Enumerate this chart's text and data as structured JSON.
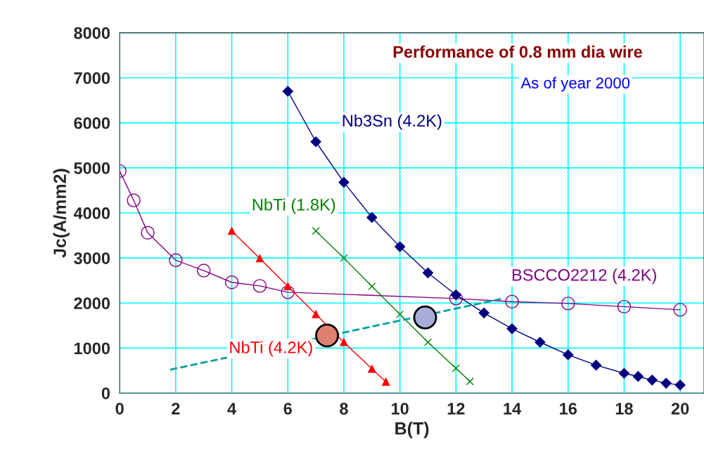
{
  "chart_data": {
    "type": "line",
    "title": "Performance of 0.8 mm dia wire",
    "subtitle": "As of year 2000",
    "xlabel": "B(T)",
    "ylabel": "Jc(A/mm2)",
    "xlim": [
      0,
      20.85
    ],
    "xticks": [
      0,
      2,
      4,
      6,
      8,
      10,
      12,
      14,
      16,
      18,
      20
    ],
    "ylim": [
      0,
      8000
    ],
    "yticks": [
      0,
      1000,
      2000,
      3000,
      4000,
      5000,
      6000,
      7000,
      8000
    ],
    "grid": true,
    "legend": false,
    "series": [
      {
        "name": "BSCCO2212 (4.2K)",
        "color": "#800080",
        "marker": "circle",
        "x": [
          0,
          0.5,
          1,
          2,
          3,
          4,
          5,
          6,
          12,
          14,
          16,
          18,
          20
        ],
        "values": [
          4930,
          4280,
          3560,
          2950,
          2720,
          2460,
          2380,
          2240,
          2100,
          2030,
          1990,
          1920,
          1850
        ]
      },
      {
        "name": "NbTi (4.2K)",
        "color": "#ff0000",
        "marker": "triangle",
        "x": [
          4,
          5,
          6,
          7,
          8,
          9,
          9.5
        ],
        "values": [
          3600,
          2990,
          2370,
          1750,
          1130,
          540,
          250
        ]
      },
      {
        "name": "NbTi (1.8K)",
        "color": "#008000",
        "marker": "cross",
        "x": [
          7,
          8,
          9,
          10,
          11,
          12,
          12.5
        ],
        "values": [
          3600,
          3000,
          2370,
          1750,
          1130,
          550,
          260
        ]
      },
      {
        "name": "Nb3Sn (4.2K)",
        "color": "#000080",
        "marker": "diamond",
        "x": [
          6,
          7,
          8,
          9,
          10,
          11,
          12,
          13,
          14,
          15,
          16,
          17,
          18,
          18.5,
          19,
          19.5,
          20
        ],
        "values": [
          6700,
          5580,
          4680,
          3900,
          3250,
          2670,
          2180,
          1780,
          1430,
          1130,
          850,
          620,
          440,
          370,
          290,
          220,
          180
        ]
      },
      {
        "type": "line",
        "color": "#00a0a0",
        "line_style": "dashed",
        "marker": "none",
        "x": [
          1.8,
          13.6
        ],
        "values": [
          520,
          2090
        ]
      },
      {
        "type": "scatter",
        "color": "#e08070",
        "marker": "circle",
        "x": [
          7.4
        ],
        "values": [
          1280
        ]
      },
      {
        "type": "scatter",
        "color": "#a8acd8",
        "marker": "circle",
        "x": [
          10.9
        ],
        "values": [
          1680
        ]
      }
    ]
  }
}
